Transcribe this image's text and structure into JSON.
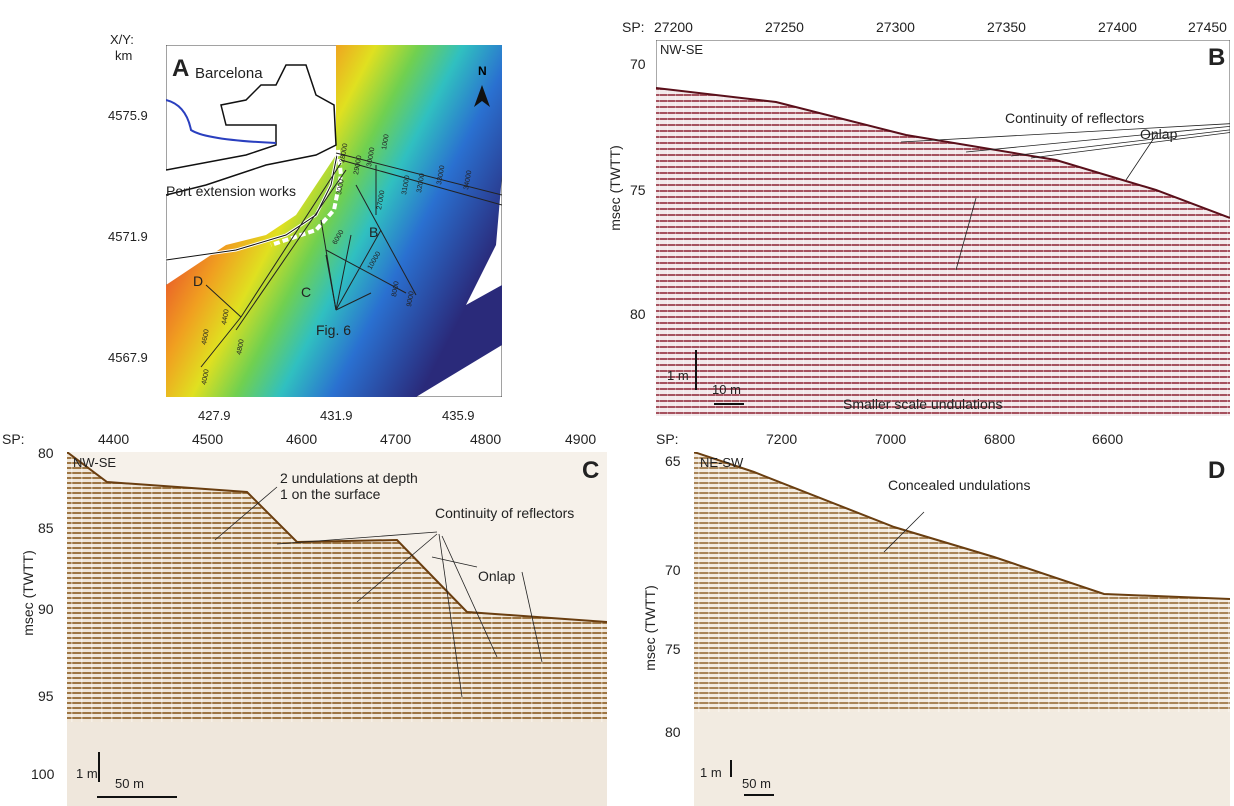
{
  "panel_a": {
    "letter": "A",
    "xy_label_1": "X/Y:",
    "xy_label_2": "km",
    "city": "Barcelona",
    "north": "N",
    "port_label": "Port extension works",
    "fig_label": "Fig. 6",
    "profile_labels": [
      "B",
      "C",
      "D"
    ],
    "y_ticks": [
      "4575.9",
      "4571.9",
      "4567.9"
    ],
    "x_ticks": [
      "427.9",
      "431.9",
      "435.9"
    ],
    "sp_numbers": [
      "1000",
      "2000",
      "3000",
      "4000",
      "5000",
      "6000",
      "7000",
      "8000",
      "9000",
      "10000",
      "24000",
      "27000",
      "28000",
      "29000",
      "30000",
      "31000",
      "32000",
      "33000",
      "34000",
      "4400",
      "4600",
      "4800",
      "4900"
    ]
  },
  "panel_b": {
    "letter": "B",
    "sp_prefix": "SP:",
    "sp_ticks": [
      "27200",
      "27250",
      "27300",
      "27350",
      "27400",
      "27450"
    ],
    "direction": "NW-SE",
    "y_ticks": [
      "70",
      "75",
      "80"
    ],
    "y_label": "msec (TWTT)",
    "ann_continuity": "Continuity of reflectors",
    "ann_onlap": "Onlap",
    "ann_smaller": "Smaller scale undulations",
    "scale_v": "1 m",
    "scale_h": "10 m"
  },
  "panel_c": {
    "letter": "C",
    "sp_prefix": "SP:",
    "sp_ticks": [
      "4400",
      "4500",
      "4600",
      "4700",
      "4800",
      "4900"
    ],
    "direction": "NW-SE",
    "y_ticks": [
      "80",
      "85",
      "90",
      "95",
      "100"
    ],
    "y_label": "msec (TWTT)",
    "ann_undul_1": "2 undulations at depth",
    "ann_undul_2": "1 on the surface",
    "ann_continuity": "Continuity of reflectors",
    "ann_onlap": "Onlap",
    "scale_v": "1 m",
    "scale_h": "50 m"
  },
  "panel_d": {
    "letter": "D",
    "sp_prefix": "SP:",
    "sp_ticks": [
      "7200",
      "7000",
      "6800",
      "6600"
    ],
    "direction": "NE-SW",
    "y_ticks": [
      "65",
      "70",
      "75",
      "80"
    ],
    "y_label": "msec (TWTT)",
    "ann_concealed": "Concealed undulations",
    "scale_v": "1 m",
    "scale_h": "50 m"
  },
  "colors": {
    "seismic_b": "#8a1f2e",
    "seismic_cd": "#8a5a1e",
    "bathy_shallow": "#d8302a",
    "bathy_deep": "#2a2a7a",
    "coastline": "#2a3fbf"
  }
}
